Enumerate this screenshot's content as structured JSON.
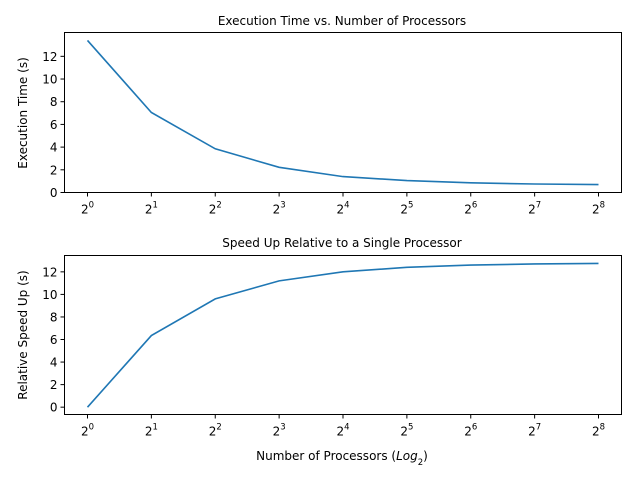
{
  "chart_data": [
    {
      "type": "line",
      "title": "Execution Time vs. Number of Processors",
      "xlabel": "",
      "ylabel": "Execution Time (s)",
      "x_scale": "log2",
      "x": [
        1,
        2,
        4,
        8,
        16,
        32,
        64,
        128,
        256
      ],
      "x_tick_base": "2",
      "x_tick_exponents": [
        "0",
        "1",
        "2",
        "3",
        "4",
        "5",
        "6",
        "7",
        "8"
      ],
      "yticks": [
        "0",
        "2",
        "4",
        "6",
        "8",
        "10",
        "12"
      ],
      "ylim": [
        0,
        14.1
      ],
      "series": [
        {
          "values": [
            13.4,
            7.05,
            3.85,
            2.22,
            1.4,
            1.05,
            0.85,
            0.75,
            0.7
          ]
        }
      ],
      "grid": false,
      "legend": "none"
    },
    {
      "type": "line",
      "title": "Speed Up Relative to a Single Processor",
      "xlabel_text": "Number of Processors (",
      "xlabel_italic": "Log",
      "xlabel_sub": "2",
      "xlabel_close": ")",
      "ylabel": "Relative Speed Up (s)",
      "x_scale": "log2",
      "x": [
        1,
        2,
        4,
        8,
        16,
        32,
        64,
        128,
        256
      ],
      "x_tick_base": "2",
      "x_tick_exponents": [
        "0",
        "1",
        "2",
        "3",
        "4",
        "5",
        "6",
        "7",
        "8"
      ],
      "yticks": [
        "0",
        "2",
        "4",
        "6",
        "8",
        "10",
        "12"
      ],
      "ylim": [
        -0.65,
        13.45
      ],
      "series": [
        {
          "values": [
            0,
            6.35,
            9.6,
            11.2,
            12.0,
            12.4,
            12.6,
            12.7,
            12.75
          ]
        }
      ],
      "grid": false,
      "legend": "none"
    }
  ]
}
